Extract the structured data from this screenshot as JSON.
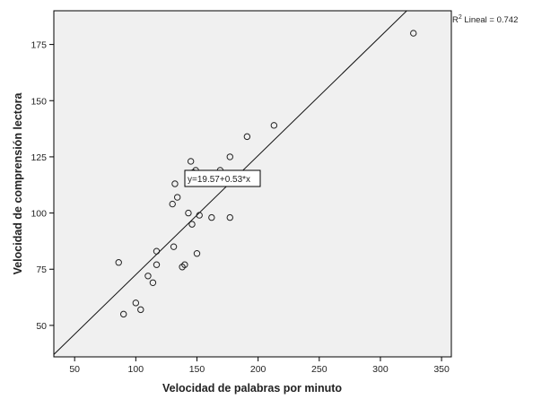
{
  "chart_data": {
    "type": "scatter",
    "xlabel": "Velocidad de palabras por minuto",
    "ylabel": "Velocidad de comprensión lectora",
    "xlim": [
      33,
      358
    ],
    "ylim": [
      36,
      190
    ],
    "xticks": [
      50,
      100,
      150,
      200,
      250,
      300,
      350
    ],
    "yticks": [
      50,
      75,
      100,
      125,
      150,
      175
    ],
    "grid": false,
    "points": [
      {
        "x": 86,
        "y": 78
      },
      {
        "x": 90,
        "y": 55
      },
      {
        "x": 100,
        "y": 60
      },
      {
        "x": 104,
        "y": 57
      },
      {
        "x": 110,
        "y": 72
      },
      {
        "x": 114,
        "y": 69
      },
      {
        "x": 117,
        "y": 77
      },
      {
        "x": 117,
        "y": 83
      },
      {
        "x": 130,
        "y": 104
      },
      {
        "x": 131,
        "y": 85
      },
      {
        "x": 132,
        "y": 113
      },
      {
        "x": 134,
        "y": 107
      },
      {
        "x": 138,
        "y": 76
      },
      {
        "x": 140,
        "y": 77
      },
      {
        "x": 143,
        "y": 100
      },
      {
        "x": 145,
        "y": 123
      },
      {
        "x": 146,
        "y": 95
      },
      {
        "x": 147,
        "y": 118
      },
      {
        "x": 149,
        "y": 119
      },
      {
        "x": 150,
        "y": 82
      },
      {
        "x": 152,
        "y": 99
      },
      {
        "x": 162,
        "y": 98
      },
      {
        "x": 169,
        "y": 119
      },
      {
        "x": 177,
        "y": 98
      },
      {
        "x": 177,
        "y": 125
      },
      {
        "x": 191,
        "y": 134
      },
      {
        "x": 213,
        "y": 139
      },
      {
        "x": 327,
        "y": 180
      }
    ],
    "fit_line": {
      "intercept": 19.57,
      "slope": 0.53
    },
    "equation_label": "y=19.57+0.53*x",
    "r2_label": {
      "prefix": "R",
      "sup": "2",
      "suffix": " Lineal = 0.742"
    }
  }
}
